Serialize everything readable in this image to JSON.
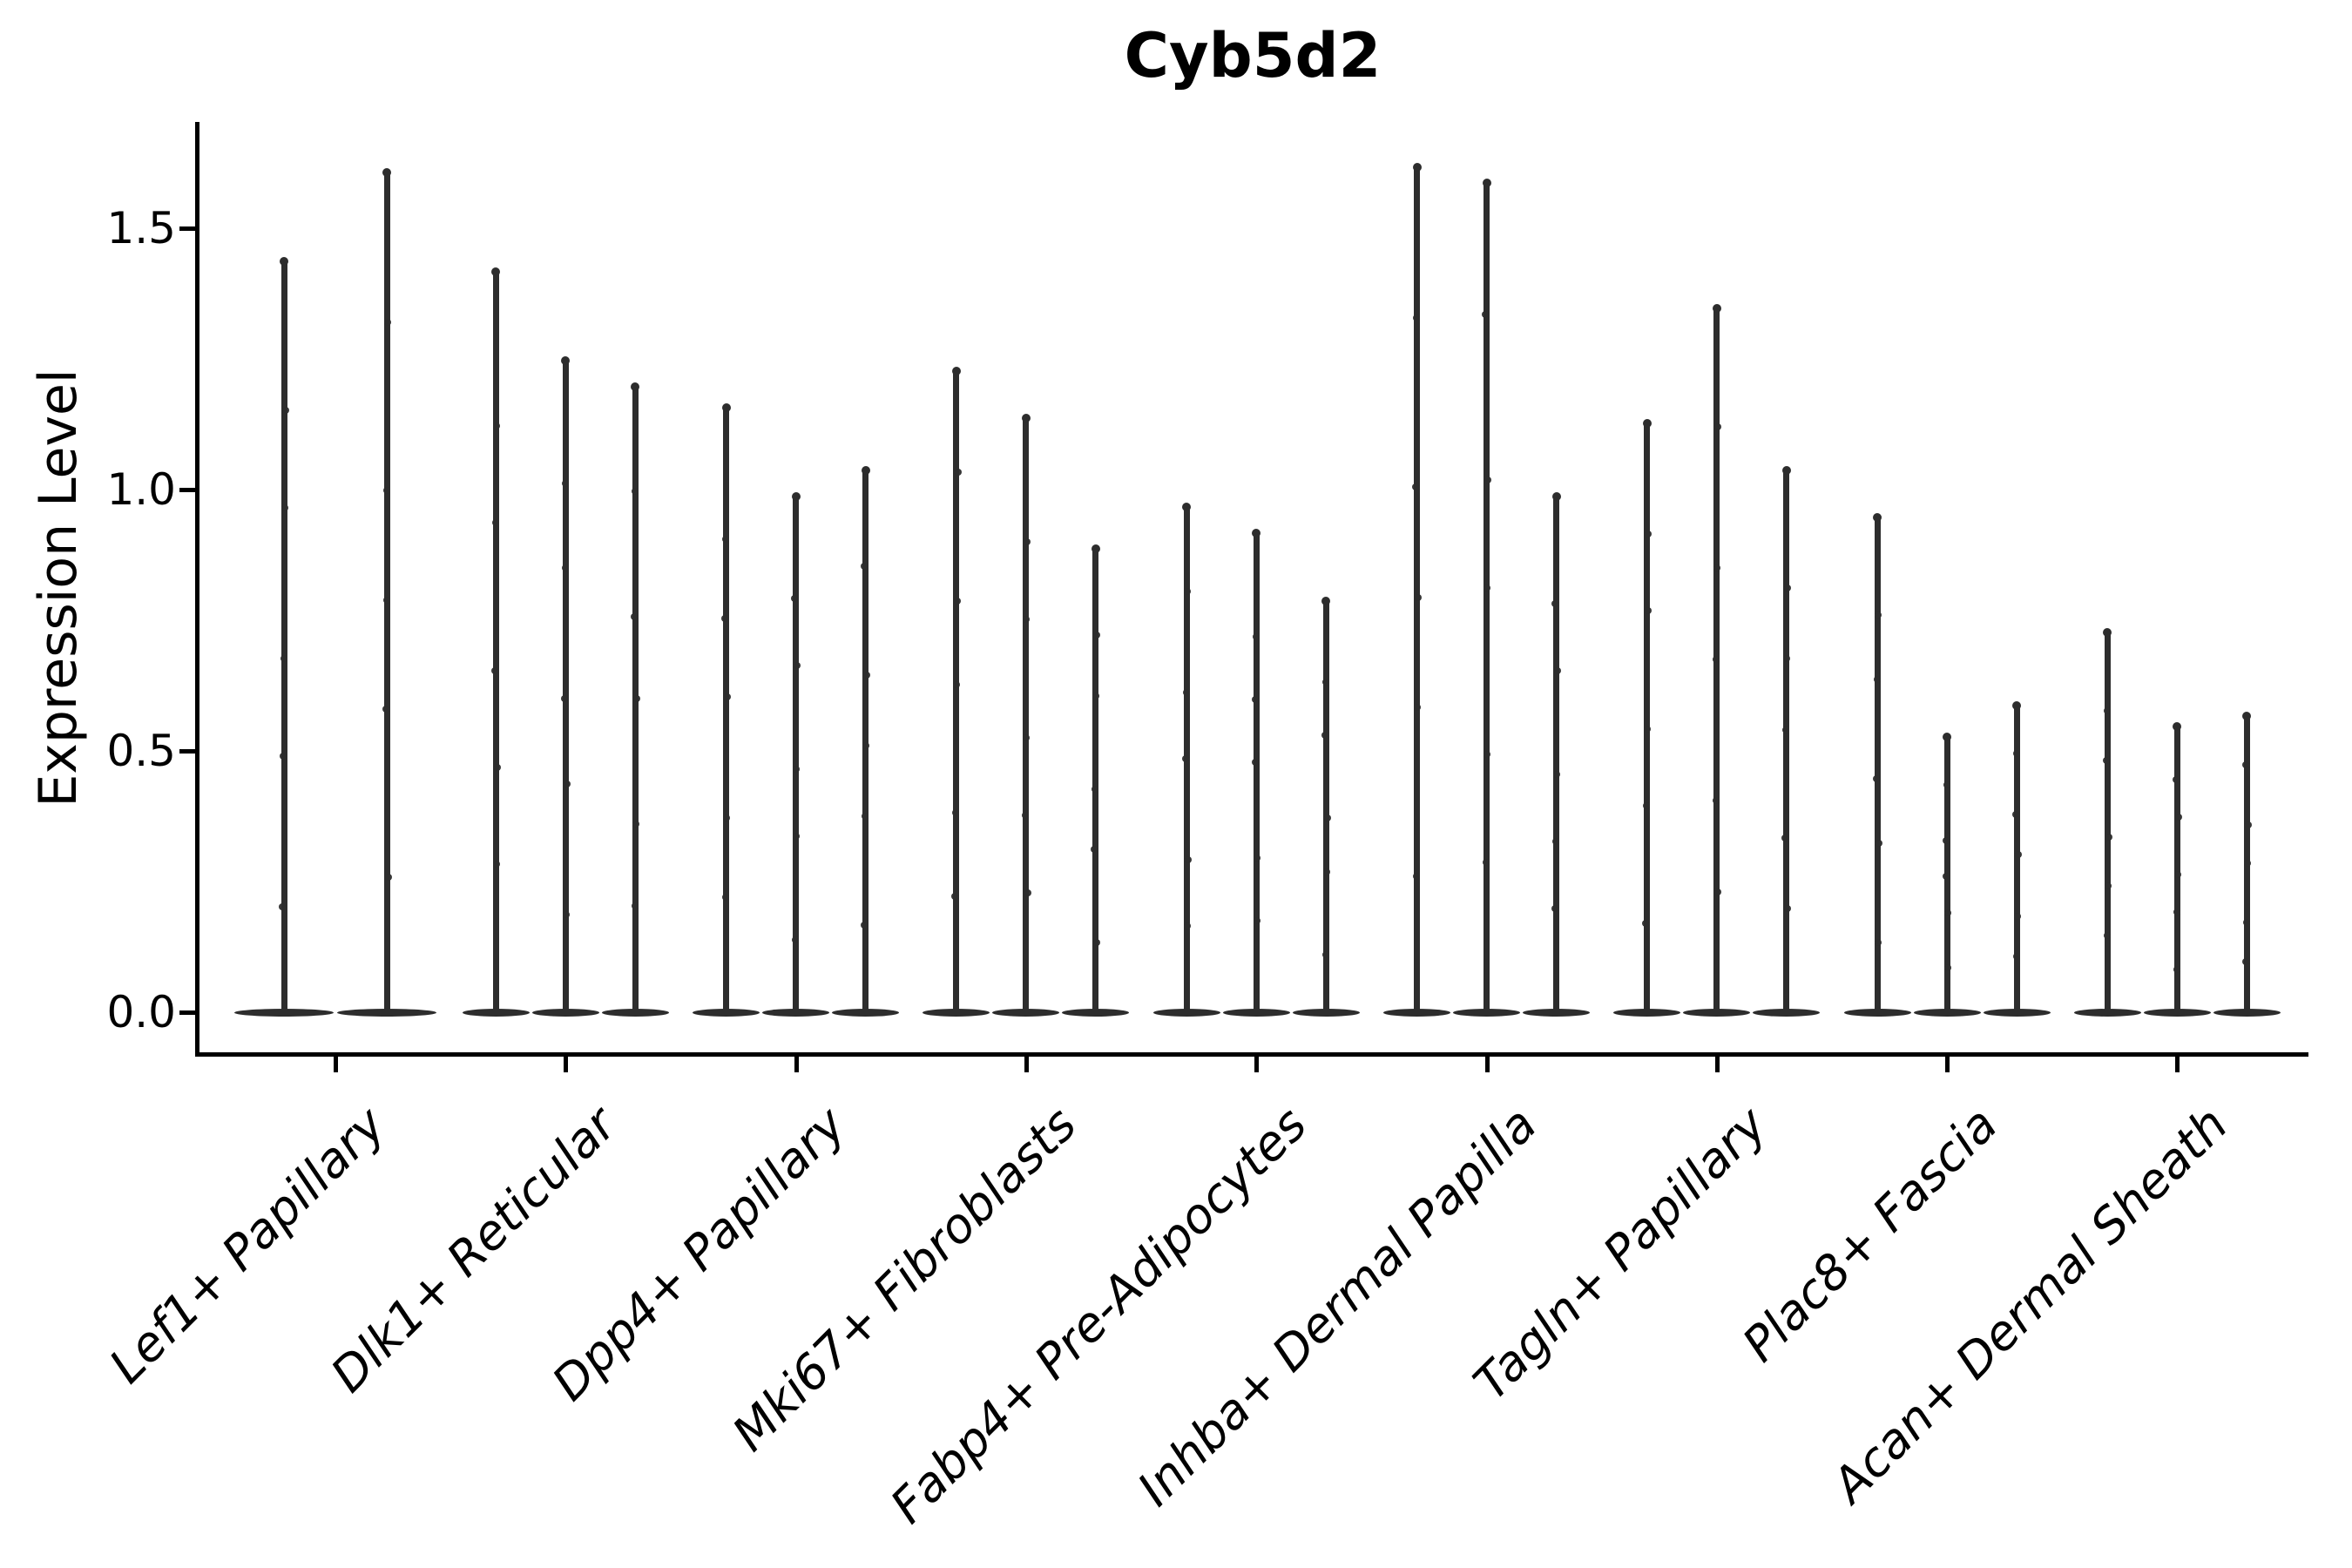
{
  "colors": {
    "violin": "#2d2d2d",
    "axis": "#000000",
    "background": "#ffffff",
    "text": "#000000"
  },
  "chart_data": {
    "type": "violin",
    "title": "Cyb5d2",
    "xlabel": "",
    "ylabel": "Expression Level",
    "ylim": [
      -0.08,
      1.7
    ],
    "yticks": [
      0.0,
      0.5,
      1.0,
      1.5
    ],
    "ytick_labels": [
      "0.0",
      "0.5",
      "1.0",
      "1.5"
    ],
    "grid": false,
    "legend": "none",
    "categories": [
      "Lef1+ Papillary",
      "Dlk1+ Reticular",
      "Dpp4+ Papillary",
      "Mki67+ Fibroblasts",
      "Fabp4+ Pre-Adipocytes",
      "Inhba+ Dermal Papilla",
      "Tagln+ Papillary",
      "Plac8+ Fascia",
      "Acan+ Dermal Sheath"
    ],
    "series": [
      {
        "category": "Lef1+ Papillary",
        "violin_max_values": [
          1.44,
          1.61
        ],
        "violin_min_values": [
          0.0,
          0.0
        ]
      },
      {
        "category": "Dlk1+ Reticular",
        "violin_max_values": [
          1.42,
          1.25,
          1.2
        ],
        "violin_min_values": [
          0.0,
          0.0,
          0.0
        ]
      },
      {
        "category": "Dpp4+ Papillary",
        "violin_max_values": [
          1.16,
          0.99,
          1.04
        ],
        "violin_min_values": [
          0.0,
          0.0,
          0.0
        ]
      },
      {
        "category": "Mki67+ Fibroblasts",
        "violin_max_values": [
          1.23,
          1.14,
          0.89
        ],
        "violin_min_values": [
          0.0,
          0.0,
          0.0
        ]
      },
      {
        "category": "Fabp4+ Pre-Adipocytes",
        "violin_max_values": [
          0.97,
          0.92,
          0.79
        ],
        "violin_min_values": [
          0.0,
          0.0,
          0.0
        ]
      },
      {
        "category": "Inhba+ Dermal Papilla",
        "violin_max_values": [
          1.62,
          1.59,
          0.99
        ],
        "violin_min_values": [
          0.0,
          0.0,
          0.0
        ]
      },
      {
        "category": "Tagln+ Papillary",
        "violin_max_values": [
          1.13,
          1.35,
          1.04
        ],
        "violin_min_values": [
          0.0,
          0.0,
          0.0
        ]
      },
      {
        "category": "Plac8+ Fascia",
        "violin_max_values": [
          0.95,
          0.53,
          0.59
        ],
        "violin_min_values": [
          0.0,
          0.0,
          0.0
        ]
      },
      {
        "category": "Acan+ Dermal Sheath",
        "violin_max_values": [
          0.73,
          0.55,
          0.57
        ],
        "violin_min_values": [
          0.0,
          0.0,
          0.0
        ]
      }
    ]
  }
}
